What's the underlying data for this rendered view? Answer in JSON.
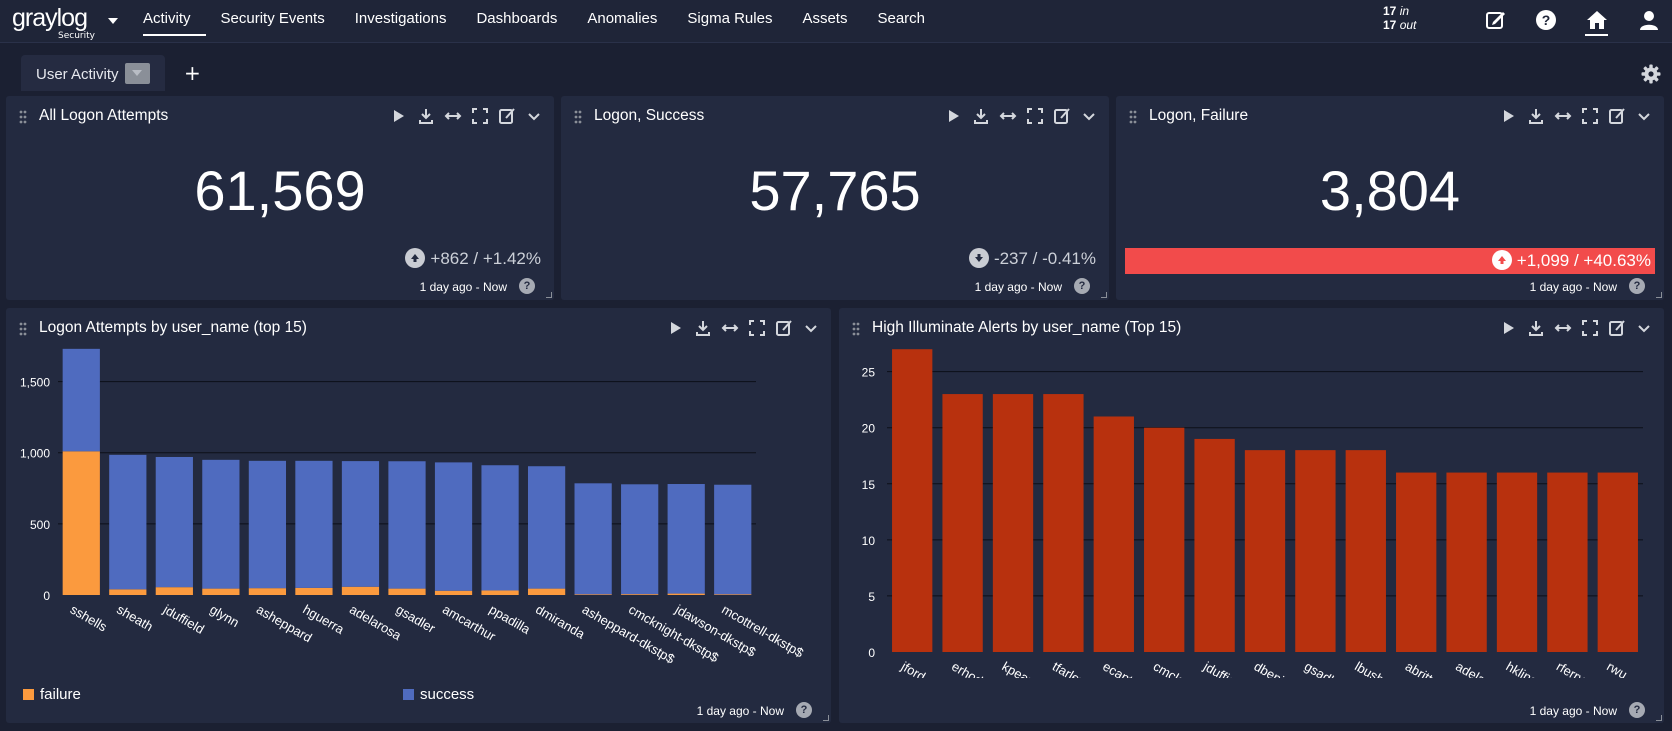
{
  "app": {
    "logo_word": "graylog",
    "logo_sub": "Security"
  },
  "nav": [
    {
      "label": "Activity",
      "active": true
    },
    {
      "label": "Security Events"
    },
    {
      "label": "Investigations"
    },
    {
      "label": "Dashboards"
    },
    {
      "label": "Anomalies"
    },
    {
      "label": "Sigma Rules"
    },
    {
      "label": "Assets"
    },
    {
      "label": "Search"
    }
  ],
  "throughput": {
    "in_count": "17",
    "in_label": "in",
    "out_count": "17",
    "out_label": "out"
  },
  "tabs": [
    {
      "label": "User Activity"
    }
  ],
  "add_tab_label": "+",
  "panels": {
    "all_logon": {
      "title": "All Logon Attempts",
      "value": "61,569",
      "trend": "+862 / +1.42%",
      "time_range": "1 day ago - Now"
    },
    "logon_success": {
      "title": "Logon, Success",
      "value": "57,765",
      "trend": "-237 / -0.41%",
      "time_range": "1 day ago - Now"
    },
    "logon_failure": {
      "title": "Logon, Failure",
      "value": "3,804",
      "trend": "+1,099 / +40.63%",
      "time_range": "1 day ago - Now"
    },
    "logon_by_user": {
      "title": "Logon Attempts by user_name (top 15)",
      "time_range": "1 day ago - Now"
    },
    "alerts_by_user": {
      "title": "High Illuminate Alerts by user_name (Top 15)",
      "time_range": "1 day ago - Now"
    }
  },
  "help_glyph": "?",
  "colors": {
    "failure": "#fb9a3e",
    "success": "#4f6bbf",
    "alerts_bar": "#b8310e",
    "trend_bad_bg": "#f24b4b"
  },
  "chart_data": [
    {
      "type": "bar",
      "stacked": true,
      "title": "Logon Attempts by user_name (top 15)",
      "categories": [
        "sshells",
        "sheath",
        "jduffield",
        "glynn",
        "asheppard",
        "hguerra",
        "adelarosa",
        "gsadler",
        "amcarthur",
        "ppadilla",
        "dmiranda",
        "asheppard-dkstp$",
        "cmcknight-dkstp$",
        "jdawson-dkstp$",
        "mcottrell-dkstp$"
      ],
      "series": [
        {
          "name": "failure",
          "values": [
            1010,
            40,
            55,
            45,
            48,
            50,
            58,
            45,
            30,
            32,
            45,
            5,
            6,
            10,
            5
          ]
        },
        {
          "name": "success",
          "values": [
            720,
            945,
            915,
            905,
            895,
            893,
            883,
            895,
            902,
            880,
            860,
            780,
            772,
            770,
            770
          ]
        }
      ],
      "yticks": [
        0,
        500,
        1000,
        1500
      ],
      "ytick_labels": [
        "0",
        "500",
        "1,000",
        "1,500"
      ],
      "ylim": [
        0,
        1750
      ],
      "legend": "bottom"
    },
    {
      "type": "bar",
      "title": "High Illuminate Alerts by user_name (Top 15)",
      "categories": [
        "jford",
        "erhodes",
        "kpearson",
        "tfarley",
        "ecantrell",
        "cmcknight",
        "jduffield",
        "dbenitez",
        "gsadler",
        "lbusby",
        "abritt",
        "adelarosa",
        "hkline",
        "rferry",
        "rwu"
      ],
      "values": [
        27,
        23,
        23,
        23,
        21,
        20,
        19,
        18,
        18,
        18,
        16,
        16,
        16,
        16,
        16
      ],
      "yticks": [
        0,
        5,
        10,
        15,
        20,
        25
      ],
      "ylim": [
        0,
        28
      ]
    }
  ]
}
